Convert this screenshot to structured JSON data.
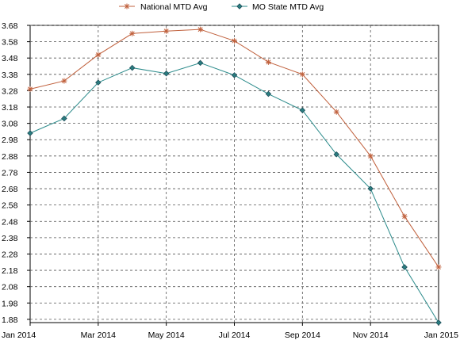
{
  "chart_data": {
    "type": "line",
    "title": "",
    "xlabel": "",
    "ylabel": "",
    "categories": [
      "Jan 2014",
      "Feb 2014",
      "Mar 2014",
      "Apr 2014",
      "May 2014",
      "Jun 2014",
      "Jul 2014",
      "Aug 2014",
      "Sep 2014",
      "Oct 2014",
      "Nov 2014",
      "Dec 2014",
      "Jan 2015"
    ],
    "x_tick_labels": [
      "Jan 2014",
      "Mar 2014",
      "May 2014",
      "Jul 2014",
      "Sep 2014",
      "Nov 2014",
      "Jan 2015"
    ],
    "y_tick_labels": [
      "1.88",
      "1.98",
      "2.08",
      "2.18",
      "2.28",
      "2.38",
      "2.48",
      "2.58",
      "2.68",
      "2.78",
      "2.88",
      "2.98",
      "3.08",
      "3.18",
      "3.28",
      "3.38",
      "3.48",
      "3.58",
      "3.68"
    ],
    "ylim": [
      1.86,
      3.68
    ],
    "grid": true,
    "legend_position": "top",
    "series": [
      {
        "name": "National MTD Avg",
        "color": "#c0603c",
        "marker": "asterisk",
        "values": [
          3.29,
          3.34,
          3.5,
          3.63,
          3.645,
          3.655,
          3.585,
          3.455,
          3.38,
          3.15,
          2.88,
          2.51,
          2.2
        ]
      },
      {
        "name": "MO State MTD Avg",
        "color": "#2a8a8a",
        "marker": "diamond",
        "values": [
          3.02,
          3.11,
          3.33,
          3.42,
          3.385,
          3.45,
          3.375,
          3.26,
          3.16,
          2.89,
          2.68,
          2.2,
          1.86
        ]
      }
    ]
  }
}
